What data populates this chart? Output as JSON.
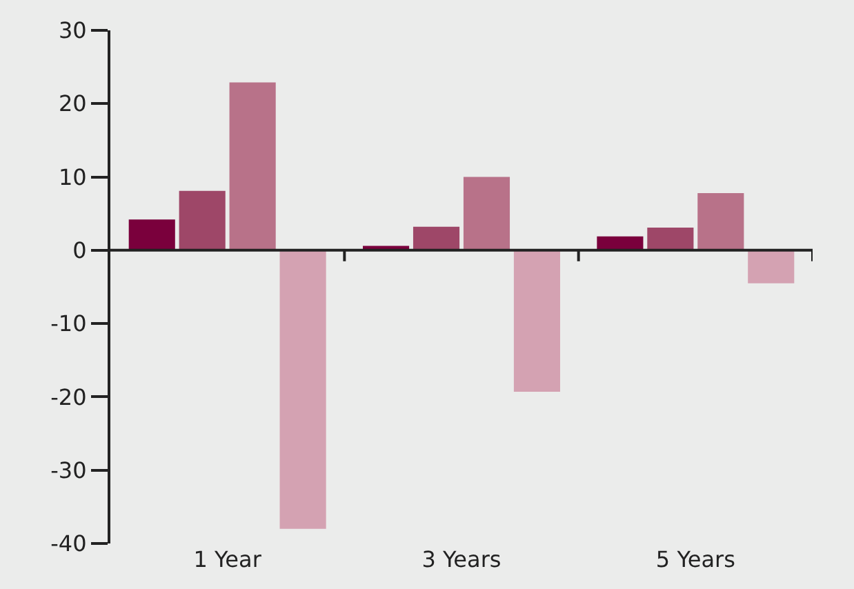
{
  "chart_data": {
    "type": "bar",
    "categories": [
      "1 Year",
      "3 Years",
      "5 Years"
    ],
    "series": [
      {
        "color": "#7a003c",
        "values": [
          4.2,
          0.6,
          1.9
        ]
      },
      {
        "color": "#9e4768",
        "values": [
          8.1,
          3.2,
          3.1
        ]
      },
      {
        "color": "#b87289",
        "values": [
          22.9,
          10.0,
          7.8
        ]
      },
      {
        "color": "#d4a2b2",
        "values": [
          -38.0,
          -19.3,
          -4.5
        ]
      }
    ],
    "ylim": [
      -40,
      30
    ],
    "yticks": [
      -40,
      -30,
      -20,
      -10,
      0,
      10,
      20,
      30
    ]
  }
}
